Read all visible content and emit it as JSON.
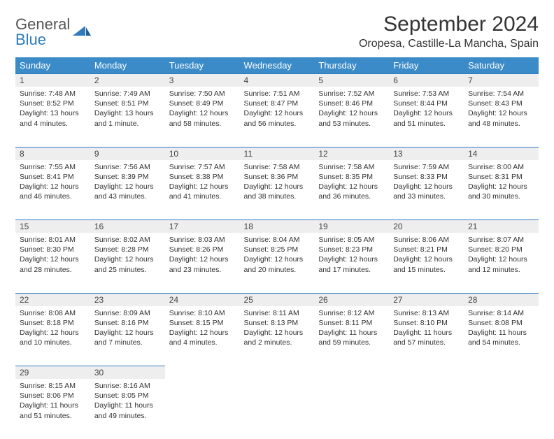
{
  "brand": {
    "part1": "General",
    "part2": "Blue"
  },
  "title": "September 2024",
  "location": "Oropesa, Castille-La Mancha, Spain",
  "colors": {
    "header_bg": "#3b8bc8",
    "rule": "#2e7bc0",
    "daynum_bg": "#eeeeee",
    "text": "#333333",
    "brand_gray": "#555555",
    "brand_blue": "#2e7bc0"
  },
  "day_labels": [
    "Sunday",
    "Monday",
    "Tuesday",
    "Wednesday",
    "Thursday",
    "Friday",
    "Saturday"
  ],
  "weeks": [
    [
      {
        "n": "1",
        "sr": "7:48 AM",
        "ss": "8:52 PM",
        "dl": "13 hours and 4 minutes."
      },
      {
        "n": "2",
        "sr": "7:49 AM",
        "ss": "8:51 PM",
        "dl": "13 hours and 1 minute."
      },
      {
        "n": "3",
        "sr": "7:50 AM",
        "ss": "8:49 PM",
        "dl": "12 hours and 58 minutes."
      },
      {
        "n": "4",
        "sr": "7:51 AM",
        "ss": "8:47 PM",
        "dl": "12 hours and 56 minutes."
      },
      {
        "n": "5",
        "sr": "7:52 AM",
        "ss": "8:46 PM",
        "dl": "12 hours and 53 minutes."
      },
      {
        "n": "6",
        "sr": "7:53 AM",
        "ss": "8:44 PM",
        "dl": "12 hours and 51 minutes."
      },
      {
        "n": "7",
        "sr": "7:54 AM",
        "ss": "8:43 PM",
        "dl": "12 hours and 48 minutes."
      }
    ],
    [
      {
        "n": "8",
        "sr": "7:55 AM",
        "ss": "8:41 PM",
        "dl": "12 hours and 46 minutes."
      },
      {
        "n": "9",
        "sr": "7:56 AM",
        "ss": "8:39 PM",
        "dl": "12 hours and 43 minutes."
      },
      {
        "n": "10",
        "sr": "7:57 AM",
        "ss": "8:38 PM",
        "dl": "12 hours and 41 minutes."
      },
      {
        "n": "11",
        "sr": "7:58 AM",
        "ss": "8:36 PM",
        "dl": "12 hours and 38 minutes."
      },
      {
        "n": "12",
        "sr": "7:58 AM",
        "ss": "8:35 PM",
        "dl": "12 hours and 36 minutes."
      },
      {
        "n": "13",
        "sr": "7:59 AM",
        "ss": "8:33 PM",
        "dl": "12 hours and 33 minutes."
      },
      {
        "n": "14",
        "sr": "8:00 AM",
        "ss": "8:31 PM",
        "dl": "12 hours and 30 minutes."
      }
    ],
    [
      {
        "n": "15",
        "sr": "8:01 AM",
        "ss": "8:30 PM",
        "dl": "12 hours and 28 minutes."
      },
      {
        "n": "16",
        "sr": "8:02 AM",
        "ss": "8:28 PM",
        "dl": "12 hours and 25 minutes."
      },
      {
        "n": "17",
        "sr": "8:03 AM",
        "ss": "8:26 PM",
        "dl": "12 hours and 23 minutes."
      },
      {
        "n": "18",
        "sr": "8:04 AM",
        "ss": "8:25 PM",
        "dl": "12 hours and 20 minutes."
      },
      {
        "n": "19",
        "sr": "8:05 AM",
        "ss": "8:23 PM",
        "dl": "12 hours and 17 minutes."
      },
      {
        "n": "20",
        "sr": "8:06 AM",
        "ss": "8:21 PM",
        "dl": "12 hours and 15 minutes."
      },
      {
        "n": "21",
        "sr": "8:07 AM",
        "ss": "8:20 PM",
        "dl": "12 hours and 12 minutes."
      }
    ],
    [
      {
        "n": "22",
        "sr": "8:08 AM",
        "ss": "8:18 PM",
        "dl": "12 hours and 10 minutes."
      },
      {
        "n": "23",
        "sr": "8:09 AM",
        "ss": "8:16 PM",
        "dl": "12 hours and 7 minutes."
      },
      {
        "n": "24",
        "sr": "8:10 AM",
        "ss": "8:15 PM",
        "dl": "12 hours and 4 minutes."
      },
      {
        "n": "25",
        "sr": "8:11 AM",
        "ss": "8:13 PM",
        "dl": "12 hours and 2 minutes."
      },
      {
        "n": "26",
        "sr": "8:12 AM",
        "ss": "8:11 PM",
        "dl": "11 hours and 59 minutes."
      },
      {
        "n": "27",
        "sr": "8:13 AM",
        "ss": "8:10 PM",
        "dl": "11 hours and 57 minutes."
      },
      {
        "n": "28",
        "sr": "8:14 AM",
        "ss": "8:08 PM",
        "dl": "11 hours and 54 minutes."
      }
    ],
    [
      {
        "n": "29",
        "sr": "8:15 AM",
        "ss": "8:06 PM",
        "dl": "11 hours and 51 minutes."
      },
      {
        "n": "30",
        "sr": "8:16 AM",
        "ss": "8:05 PM",
        "dl": "11 hours and 49 minutes."
      },
      null,
      null,
      null,
      null,
      null
    ]
  ],
  "labels": {
    "sunrise": "Sunrise:",
    "sunset": "Sunset:",
    "daylight": "Daylight:"
  }
}
